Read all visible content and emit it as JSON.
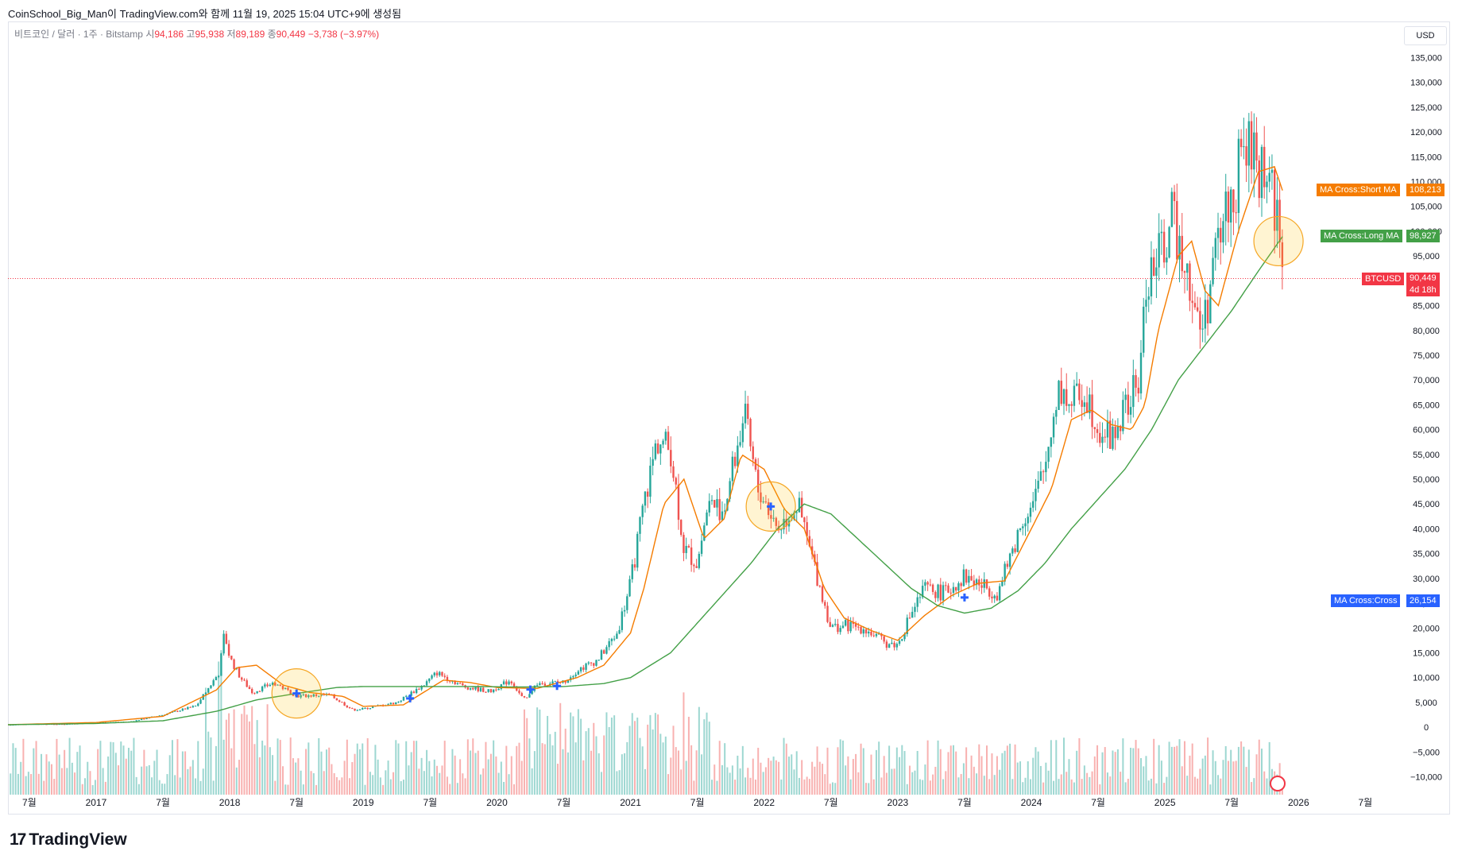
{
  "header": {
    "caption": "CoinSchool_Big_Man이 TradingView.com와 함께 11월 19, 2025 15:04 UTC+9에 생성됨"
  },
  "legend": {
    "symbol": "비트코인 / 달러 · 1주 · Bitstamp",
    "open_label": "시",
    "open": "94,186",
    "high_label": "고",
    "high": "95,938",
    "low_label": "저",
    "low": "89,189",
    "close_label": "종",
    "close": "90,449",
    "change": "−3,738 (−3.97%)"
  },
  "currency_button": "USD",
  "price_tags": {
    "short_ma": {
      "label": "MA Cross:Short MA",
      "value": "108,213",
      "color": "#f57c00"
    },
    "long_ma": {
      "label": "MA Cross:Long MA",
      "value": "98,927",
      "color": "#43a047"
    },
    "btc": {
      "label": "BTCUSD",
      "value": "90,449",
      "countdown": "4d 18h",
      "color": "#f23645"
    },
    "cross": {
      "label": "MA Cross:Cross",
      "value": "26,154",
      "color": "#2962ff"
    }
  },
  "footer": {
    "brand": "TradingView"
  },
  "chart_data": {
    "type": "line",
    "title": "",
    "symbol": "BTCUSD",
    "interval": "1W",
    "exchange": "Bitstamp",
    "y_axis": {
      "range": [
        -12000,
        137000
      ],
      "ticks": [
        135000,
        130000,
        125000,
        120000,
        115000,
        110000,
        105000,
        100000,
        95000,
        90000,
        85000,
        80000,
        75000,
        70000,
        65000,
        60000,
        55000,
        50000,
        45000,
        40000,
        35000,
        30000,
        25000,
        20000,
        15000,
        10000,
        5000,
        0,
        -5000,
        -10000
      ],
      "tick_labels": [
        "135,000",
        "130,000",
        "125,000",
        "120,000",
        "115,000",
        "110,000",
        "105,000",
        "100,000",
        "95,000",
        "90,000",
        "85,000",
        "80,000",
        "75,000",
        "70,000",
        "65,000",
        "60,000",
        "55,000",
        "50,000",
        "45,000",
        "40,000",
        "35,000",
        "30,000",
        "25,000",
        "20,000",
        "15,000",
        "10,000",
        "5,000",
        "0",
        "−5,000",
        "−10,000"
      ]
    },
    "x_axis": {
      "range": [
        2016.34,
        2026.7
      ],
      "ticks": [
        2016.5,
        2017.0,
        2017.5,
        2018.0,
        2018.5,
        2019.0,
        2019.5,
        2020.0,
        2020.5,
        2021.0,
        2021.5,
        2022.0,
        2022.5,
        2023.0,
        2023.5,
        2024.0,
        2024.5,
        2025.0,
        2025.5,
        2026.0,
        2026.5
      ],
      "tick_labels": [
        "7월",
        "2017",
        "7월",
        "2018",
        "7월",
        "2019",
        "7월",
        "2020",
        "7월",
        "2021",
        "7월",
        "2022",
        "7월",
        "2023",
        "7월",
        "2024",
        "7월",
        "2025",
        "7월",
        "2026",
        "7월"
      ]
    },
    "grid": false,
    "series": [
      {
        "name": "BTCUSD",
        "kind": "close",
        "color": "#f23645",
        "x": [
          2016.34,
          2016.5,
          2016.75,
          2017.0,
          2017.25,
          2017.5,
          2017.75,
          2017.92,
          2017.96,
          2018.0,
          2018.08,
          2018.17,
          2018.33,
          2018.5,
          2018.75,
          2018.92,
          2019.0,
          2019.25,
          2019.45,
          2019.55,
          2019.75,
          2019.95,
          2020.1,
          2020.2,
          2020.3,
          2020.5,
          2020.6,
          2020.75,
          2020.9,
          2021.0,
          2021.1,
          2021.2,
          2021.3,
          2021.4,
          2021.5,
          2021.58,
          2021.7,
          2021.85,
          2021.95,
          2022.0,
          2022.1,
          2022.25,
          2022.4,
          2022.5,
          2022.6,
          2022.75,
          2022.9,
          2023.0,
          2023.1,
          2023.2,
          2023.35,
          2023.5,
          2023.6,
          2023.75,
          2023.85,
          2023.95,
          2024.0,
          2024.1,
          2024.2,
          2024.3,
          2024.4,
          2024.5,
          2024.6,
          2024.7,
          2024.8,
          2024.87,
          2024.95,
          2025.05,
          2025.15,
          2025.25,
          2025.3,
          2025.38,
          2025.45,
          2025.52,
          2025.6,
          2025.67,
          2025.75,
          2025.8,
          2025.85,
          2025.88
        ],
        "y": [
          450,
          650,
          600,
          960,
          1100,
          2500,
          4300,
          11000,
          19000,
          14000,
          10000,
          7000,
          9000,
          6300,
          6500,
          3500,
          3700,
          5000,
          8500,
          11000,
          8200,
          7200,
          9500,
          5500,
          8800,
          9100,
          11500,
          13500,
          19000,
          29000,
          45000,
          58000,
          56000,
          36000,
          33000,
          45000,
          44000,
          63000,
          48000,
          46000,
          40000,
          45000,
          30000,
          20000,
          20500,
          20000,
          17000,
          16600,
          23000,
          28000,
          27000,
          30500,
          29000,
          27000,
          35000,
          43000,
          44000,
          52000,
          69000,
          65000,
          68000,
          61000,
          58000,
          64000,
          69000,
          91000,
          94000,
          102000,
          96000,
          80000,
          83000,
          95000,
          104000,
          108000,
          118000,
          114000,
          112000,
          110000,
          100000,
          90449
        ]
      },
      {
        "name": "MA Cross:Short MA",
        "color": "#f57c00",
        "x": [
          2016.34,
          2017.0,
          2017.5,
          2017.9,
          2018.05,
          2018.2,
          2018.4,
          2018.6,
          2018.85,
          2019.0,
          2019.3,
          2019.6,
          2019.8,
          2020.0,
          2020.3,
          2020.6,
          2020.8,
          2021.0,
          2021.1,
          2021.25,
          2021.4,
          2021.55,
          2021.7,
          2021.83,
          2022.0,
          2022.15,
          2022.3,
          2022.45,
          2022.6,
          2022.8,
          2023.0,
          2023.2,
          2023.4,
          2023.6,
          2023.8,
          2024.0,
          2024.15,
          2024.3,
          2024.45,
          2024.6,
          2024.75,
          2024.85,
          2024.95,
          2025.1,
          2025.2,
          2025.3,
          2025.4,
          2025.55,
          2025.7,
          2025.82,
          2025.88
        ],
        "y": [
          500,
          950,
          2200,
          7500,
          12000,
          12500,
          8500,
          7000,
          6200,
          4200,
          4500,
          9500,
          9000,
          8000,
          7800,
          10000,
          12500,
          19000,
          28000,
          45000,
          50000,
          38000,
          42000,
          55000,
          52000,
          44000,
          40000,
          28000,
          22000,
          19500,
          17500,
          22500,
          26500,
          29000,
          29500,
          40000,
          48000,
          62000,
          64000,
          61000,
          60000,
          65000,
          80000,
          95000,
          98000,
          88000,
          85000,
          100000,
          112000,
          113000,
          108213
        ]
      },
      {
        "name": "MA Cross:Long MA",
        "color": "#43a047",
        "x": [
          2016.34,
          2017.0,
          2017.5,
          2017.9,
          2018.2,
          2018.5,
          2018.8,
          2019.0,
          2019.4,
          2019.8,
          2020.2,
          2020.5,
          2020.8,
          2021.0,
          2021.3,
          2021.6,
          2021.9,
          2022.1,
          2022.3,
          2022.5,
          2022.7,
          2022.9,
          2023.1,
          2023.3,
          2023.5,
          2023.7,
          2023.9,
          2024.1,
          2024.3,
          2024.5,
          2024.7,
          2024.9,
          2025.1,
          2025.3,
          2025.5,
          2025.7,
          2025.88
        ],
        "y": [
          500,
          750,
          1300,
          3200,
          5500,
          6800,
          8000,
          8200,
          8200,
          8200,
          8100,
          8200,
          8800,
          10000,
          15000,
          24000,
          33000,
          40000,
          45000,
          43000,
          38000,
          33000,
          28000,
          24500,
          23000,
          24000,
          27500,
          33000,
          40000,
          46000,
          52000,
          60000,
          70000,
          77000,
          84000,
          92000,
          98927
        ]
      },
      {
        "name": "MA Cross:Cross",
        "kind": "markers",
        "color": "#2962ff",
        "x": [
          2018.5,
          2019.35,
          2020.25,
          2020.45,
          2022.05,
          2023.5
        ],
        "y": [
          6800,
          5800,
          7600,
          8300,
          44500,
          26154
        ]
      }
    ],
    "highlight_circles": [
      {
        "x": 2018.5,
        "y": 6800
      },
      {
        "x": 2022.05,
        "y": 44500
      },
      {
        "x": 2025.85,
        "y": 98000
      }
    ],
    "current_price_line": 90449,
    "volume": {
      "color_up": "#26a69a",
      "color_down": "#ef5350",
      "note": "weekly volume bars along the bottom of the chart"
    }
  }
}
